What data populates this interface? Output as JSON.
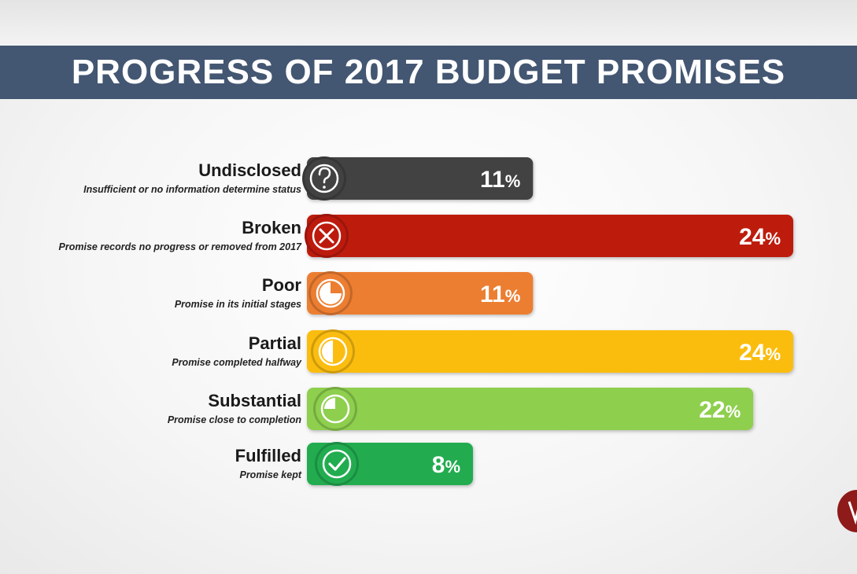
{
  "title": "PROGRESS OF 2017 BUDGET PROMISES",
  "chart_data": {
    "type": "bar",
    "orientation": "horizontal",
    "title": "PROGRESS OF 2017 BUDGET PROMISES",
    "unit": "%",
    "xlim": [
      0,
      24
    ],
    "grid": false,
    "legend": "none",
    "categories": [
      "Undisclosed",
      "Broken",
      "Poor",
      "Partial",
      "Substantial",
      "Fulfilled"
    ],
    "descriptions": [
      "Insufficient or no information determine status",
      "Promise records no progress or removed from 2017",
      "Promise in its initial stages",
      "Promise completed halfway",
      "Promise close to completion",
      "Promise kept"
    ],
    "values": [
      11,
      24,
      11,
      24,
      22,
      8
    ],
    "value_labels": [
      "11",
      "24",
      "11",
      "24",
      "22",
      "8"
    ],
    "colors": [
      "#424242",
      "#bd1a0e",
      "#ec7e32",
      "#fbbd10",
      "#8ecf4e",
      "#22ac50"
    ],
    "icons": [
      "question-icon",
      "cross-icon",
      "quarter-pie-icon",
      "half-pie-icon",
      "three-quarter-pie-icon",
      "check-icon"
    ]
  }
}
